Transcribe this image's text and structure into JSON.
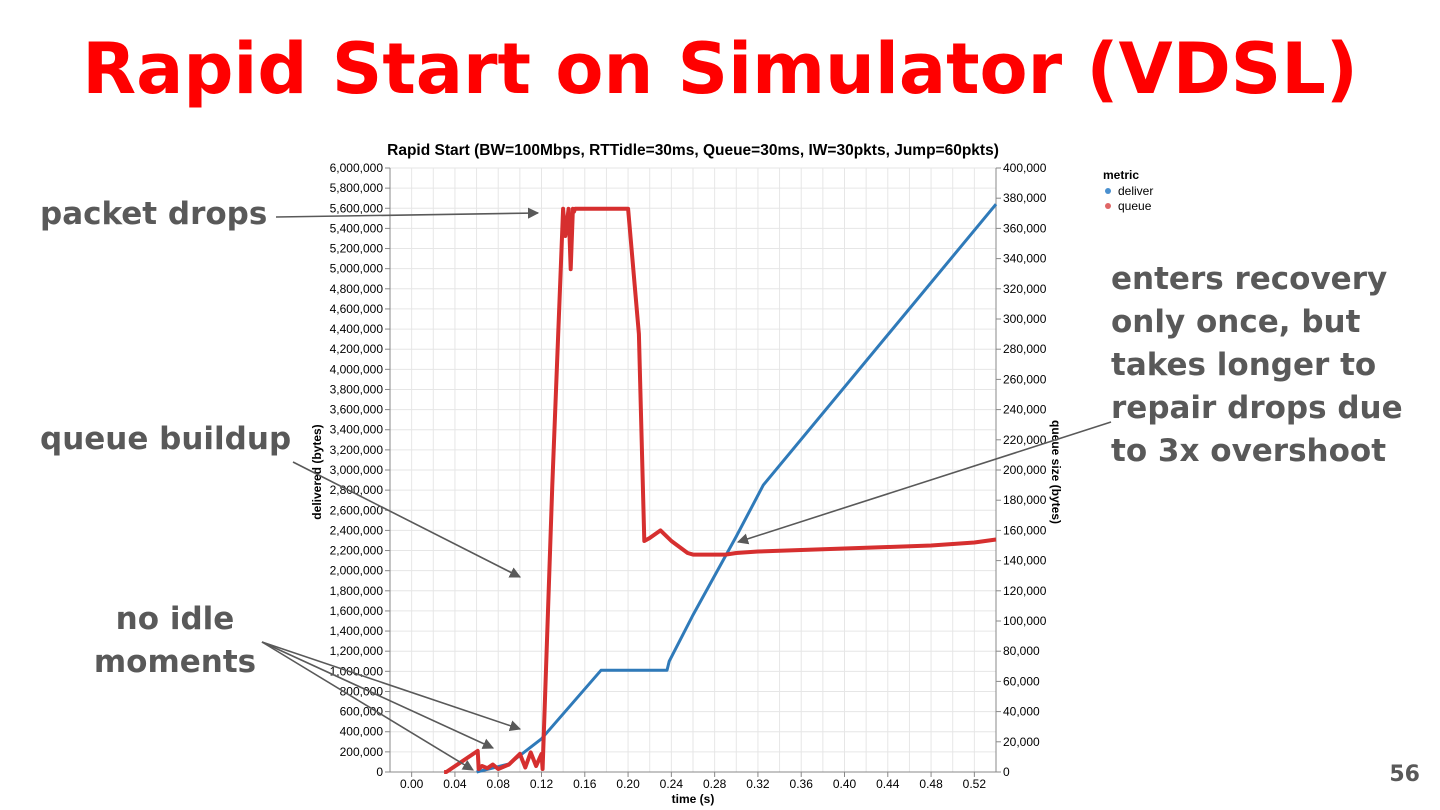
{
  "slide": {
    "title": "Rapid Start on Simulator (VDSL)",
    "page_number": "56"
  },
  "annotations": {
    "packet_drops": "packet drops",
    "queue_buildup": "queue buildup",
    "no_idle_line1": "no idle",
    "no_idle_line2": "moments",
    "recovery_lines": [
      "enters recovery",
      "only once, but",
      "takes longer to",
      "repair drops due",
      "to 3x overshoot"
    ]
  },
  "colors": {
    "title": "#ff0000",
    "annotation": "#595959",
    "deliver": "#2f7ab9",
    "queue": "#d62f2f",
    "arrow": "#595959"
  },
  "chart_data": {
    "type": "line",
    "title": "Rapid Start (BW=100Mbps, RTTidle=30ms, Queue=30ms, IW=30pkts, Jump=60pkts)",
    "xlabel": "time (s)",
    "ylabel_left": "delivered (bytes)",
    "ylabel_right": "queue size (bytes)",
    "xlim": [
      -0.02,
      0.54
    ],
    "ylim_left": [
      0,
      6000000
    ],
    "ylim_right": [
      0,
      400000
    ],
    "x_ticks": [
      0.0,
      0.04,
      0.08,
      0.12,
      0.16,
      0.2,
      0.24,
      0.28,
      0.32,
      0.36,
      0.4,
      0.44,
      0.48,
      0.52
    ],
    "x_tick_labels": [
      "0.00",
      "0.04",
      "0.08",
      "0.12",
      "0.16",
      "0.20",
      "0.24",
      "0.28",
      "0.32",
      "0.36",
      "0.40",
      "0.44",
      "0.48",
      "0.52"
    ],
    "y_left_ticks": [
      0,
      200000,
      400000,
      600000,
      800000,
      1000000,
      1200000,
      1400000,
      1600000,
      1800000,
      2000000,
      2200000,
      2400000,
      2600000,
      2800000,
      3000000,
      3200000,
      3400000,
      3600000,
      3800000,
      4000000,
      4200000,
      4400000,
      4600000,
      4800000,
      5000000,
      5200000,
      5400000,
      5600000,
      5800000,
      6000000
    ],
    "y_left_tick_labels": [
      "0",
      "200,000",
      "400,000",
      "600,000",
      "800,000",
      "1,000,000",
      "1,200,000",
      "1,400,000",
      "1,600,000",
      "1,800,000",
      "2,000,000",
      "2,200,000",
      "2,400,000",
      "2,600,000",
      "2,800,000",
      "3,000,000",
      "3,200,000",
      "3,400,000",
      "3,600,000",
      "3,800,000",
      "4,000,000",
      "4,200,000",
      "4,400,000",
      "4,600,000",
      "4,800,000",
      "5,000,000",
      "5,200,000",
      "5,400,000",
      "5,600,000",
      "5,800,000",
      "6,000,000"
    ],
    "y_right_ticks": [
      0,
      20000,
      40000,
      60000,
      80000,
      100000,
      120000,
      140000,
      160000,
      180000,
      200000,
      220000,
      240000,
      260000,
      280000,
      300000,
      320000,
      340000,
      360000,
      380000,
      400000
    ],
    "y_right_tick_labels": [
      "0",
      "20,000",
      "40,000",
      "60,000",
      "80,000",
      "100,000",
      "120,000",
      "140,000",
      "160,000",
      "180,000",
      "200,000",
      "220,000",
      "240,000",
      "260,000",
      "280,000",
      "300,000",
      "320,000",
      "340,000",
      "360,000",
      "380,000",
      "400,000"
    ],
    "grid": true,
    "legend": {
      "title": "metric",
      "placement": "top-right",
      "entries": [
        "deliver",
        "queue"
      ]
    },
    "series": [
      {
        "name": "deliver",
        "axis": "left",
        "x": [
          0.06,
          0.09,
          0.12,
          0.175,
          0.236,
          0.238,
          0.26,
          0.3,
          0.325,
          0.54
        ],
        "y": [
          0,
          80000,
          330000,
          1010000,
          1010000,
          1100000,
          1560000,
          2340000,
          2850000,
          5640000
        ]
      },
      {
        "name": "queue",
        "axis": "right",
        "x": [
          0.03,
          0.032,
          0.061,
          0.062,
          0.065,
          0.07,
          0.075,
          0.08,
          0.09,
          0.1,
          0.105,
          0.11,
          0.115,
          0.12,
          0.121,
          0.13,
          0.14,
          0.142,
          0.145,
          0.147,
          0.149,
          0.15,
          0.151,
          0.2,
          0.21,
          0.215,
          0.22,
          0.23,
          0.24,
          0.255,
          0.26,
          0.29,
          0.3,
          0.32,
          0.36,
          0.4,
          0.44,
          0.48,
          0.52,
          0.54
        ],
        "y": [
          0,
          0,
          14000,
          2000,
          4000,
          2500,
          5000,
          2000,
          5000,
          12000,
          3000,
          13000,
          4000,
          12000,
          2000,
          190000,
          373000,
          355000,
          373000,
          333000,
          373000,
          371000,
          373000,
          373000,
          290000,
          153000,
          155000,
          160000,
          153000,
          145000,
          144000,
          144000,
          145000,
          146000,
          147000,
          148000,
          149000,
          150000,
          152000,
          154000
        ]
      }
    ]
  }
}
